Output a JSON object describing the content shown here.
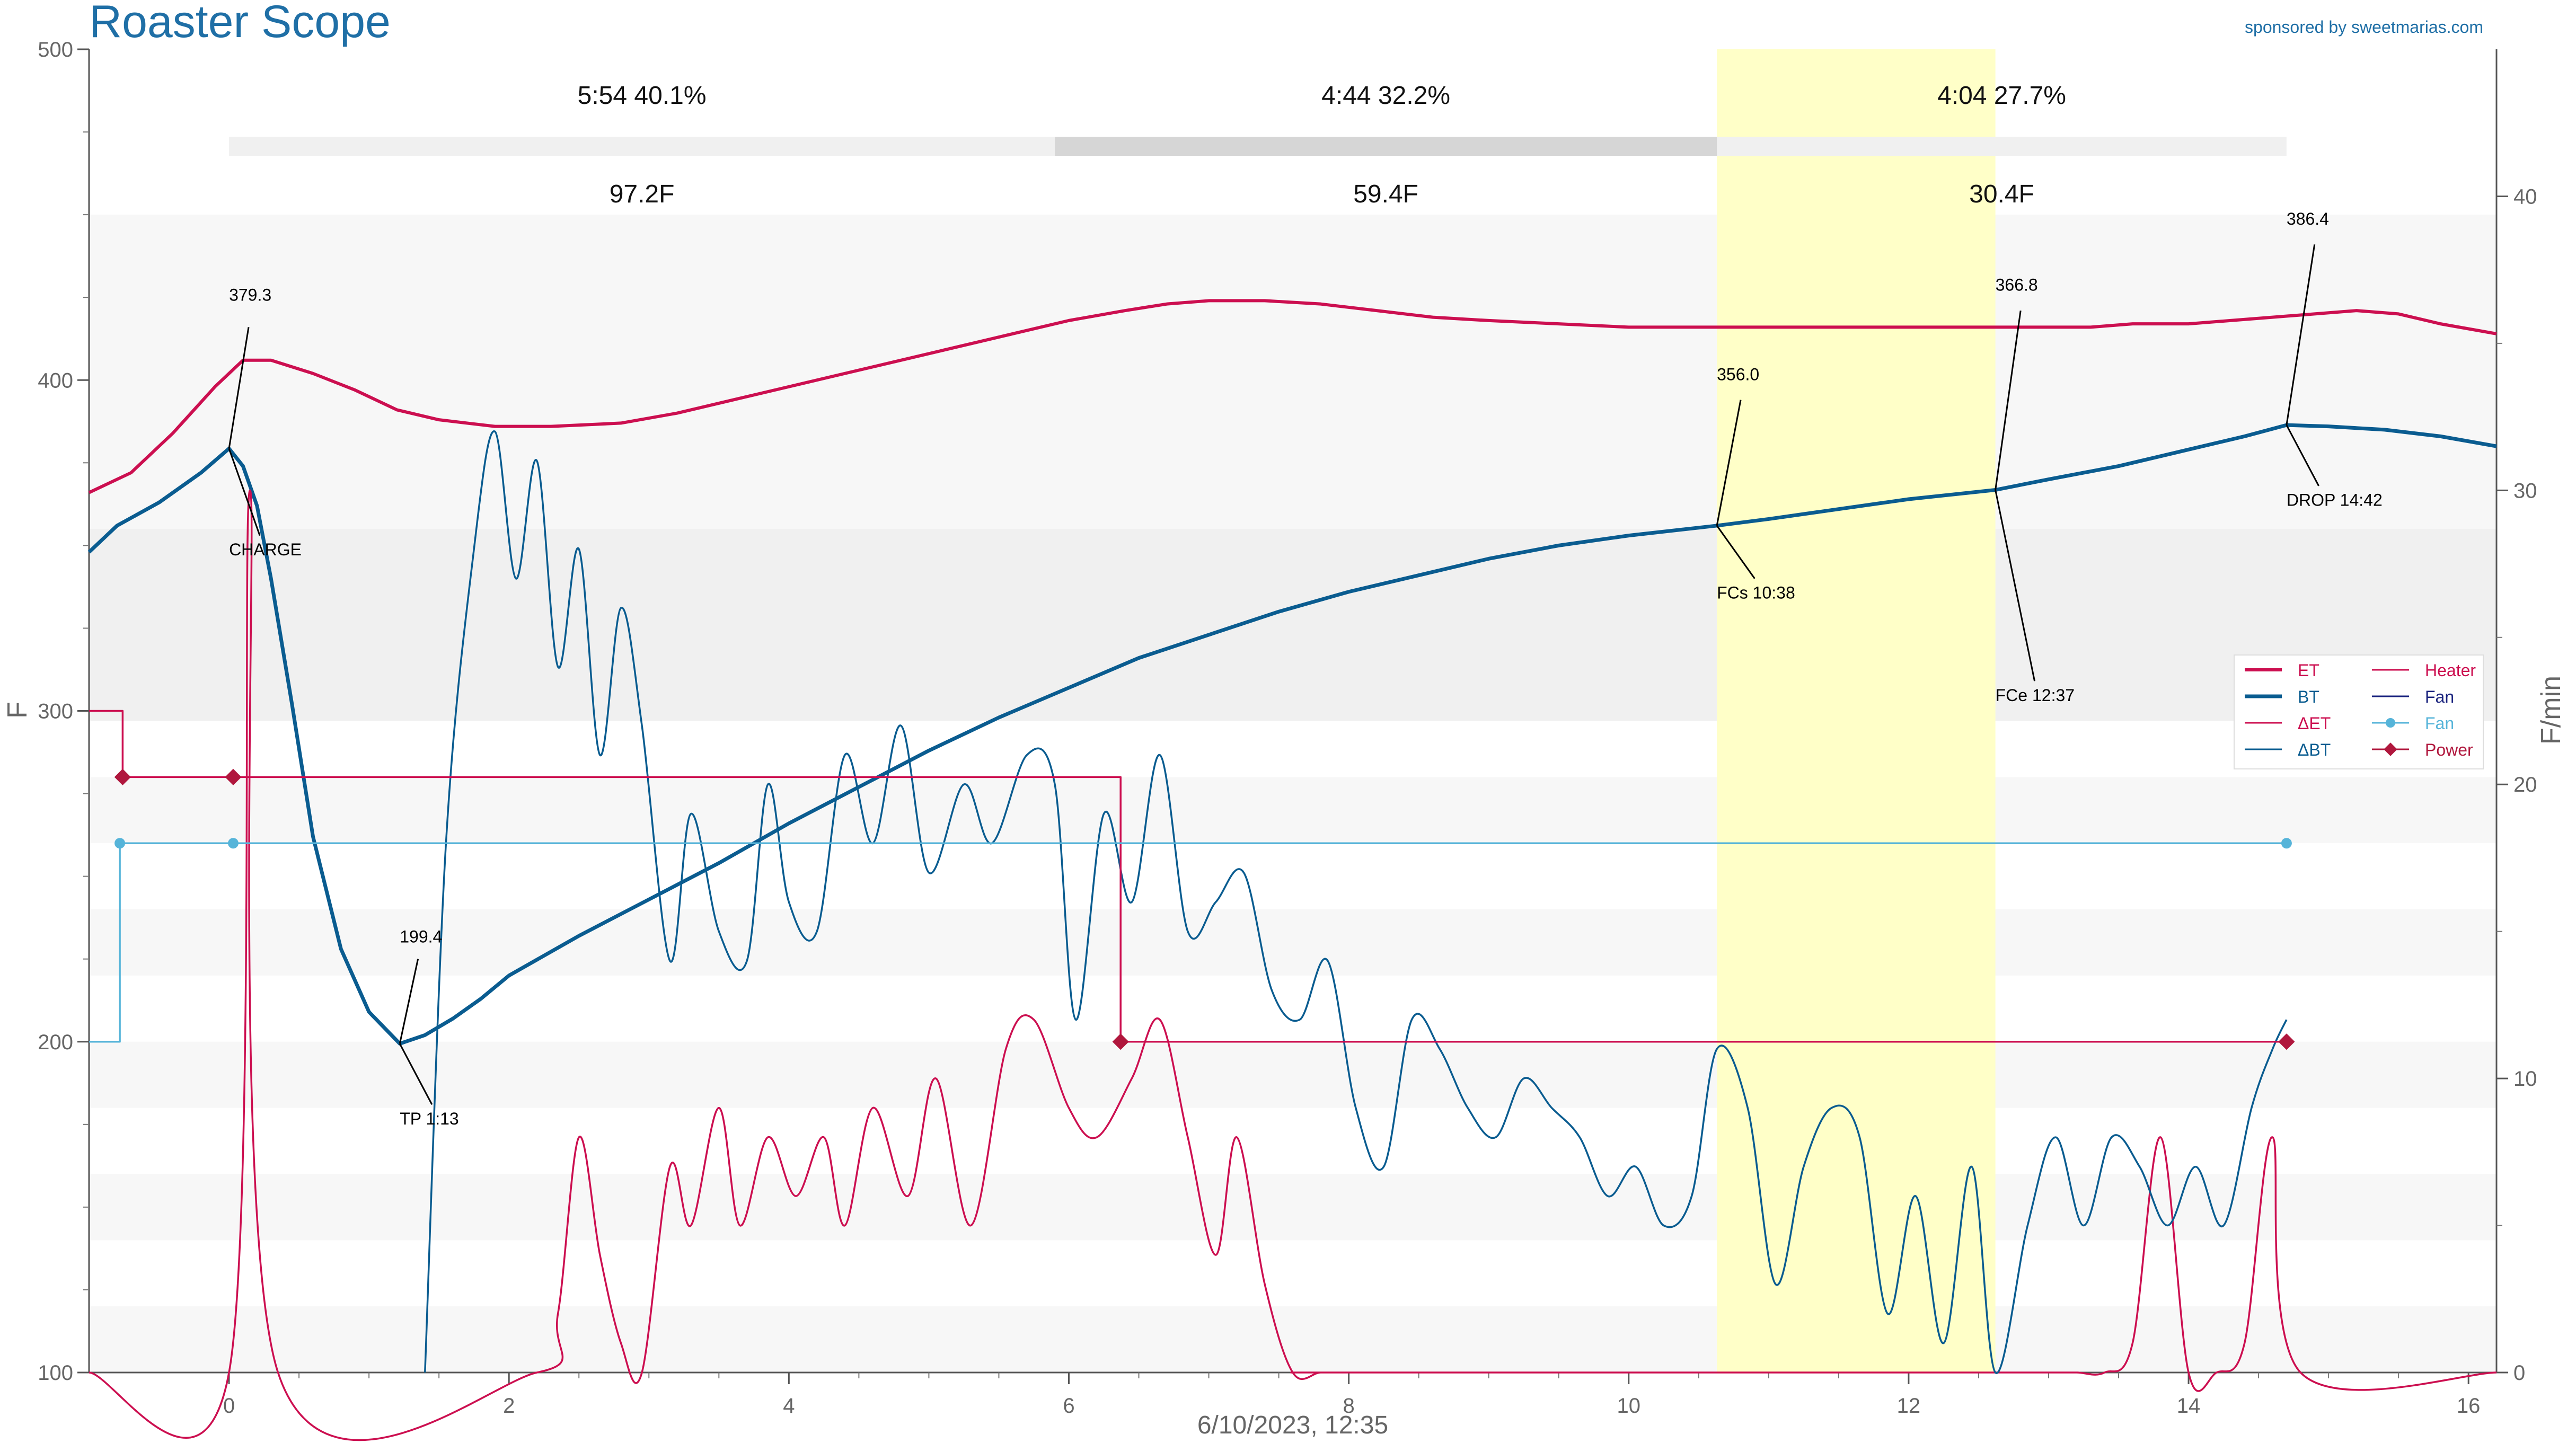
{
  "header": {
    "title": "Roaster Scope",
    "sponsor": "sponsored by sweetmarias.com"
  },
  "colors": {
    "title": "#1f6fa6",
    "et": "#cc0f50",
    "bt": "#0a5c90",
    "fan": "#56b4d9",
    "fan_legend": "#1a237e",
    "power": "#b0173d",
    "phase_highlight": "#ffffc8",
    "band_light": "#f7f7f7",
    "band_dark": "#f0f0f0"
  },
  "chart_data": {
    "type": "line",
    "xlabel": "6/10/2023, 12:35",
    "ylabel": "F",
    "y2label": "F/min",
    "xlim": [
      -1,
      16.2
    ],
    "ylim": [
      100,
      500
    ],
    "y2lim": [
      0,
      45
    ],
    "x_ticks": [
      "0",
      "2",
      "4",
      "6",
      "8",
      "10",
      "12",
      "14",
      "16"
    ],
    "y_ticks": [
      "100",
      "200",
      "300",
      "400",
      "500"
    ],
    "y2_ticks": [
      "0",
      "10",
      "20",
      "30",
      "40"
    ],
    "grid": false,
    "legend_position": "right",
    "phases": [
      {
        "time": "5:54",
        "pct": "40.1%",
        "delta": "97.2F"
      },
      {
        "time": "4:44",
        "pct": "32.2%",
        "delta": "59.4F"
      },
      {
        "time": "4:04",
        "pct": "27.7%",
        "delta": "30.4F"
      }
    ],
    "phase_bounds_min": [
      0,
      5.9,
      10.63,
      14.7
    ],
    "development_highlight": [
      10.63,
      12.62
    ],
    "events": [
      {
        "label": "CHARGE",
        "x": 0,
        "y": 379.3,
        "value": "379.3"
      },
      {
        "label": "TP 1:13",
        "x": 1.22,
        "y": 199.4,
        "value": "199.4"
      },
      {
        "label": "FCs 10:38",
        "x": 10.63,
        "y": 356.0,
        "value": "356.0"
      },
      {
        "label": "FCe 12:37",
        "x": 12.62,
        "y": 366.8,
        "value": "366.8"
      },
      {
        "label": "DROP 14:42",
        "x": 14.7,
        "y": 386.4,
        "value": "386.4"
      }
    ],
    "legend": [
      "ET",
      "BT",
      "ΔET",
      "ΔBT",
      "Heater",
      "Fan",
      "Fan",
      "Power"
    ],
    "series": [
      {
        "name": "ET",
        "axis": "left",
        "x": [
          -1,
          -0.7,
          -0.4,
          -0.1,
          0.1,
          0.3,
          0.6,
          0.9,
          1.2,
          1.5,
          1.9,
          2.3,
          2.8,
          3.2,
          3.6,
          4.0,
          4.4,
          4.8,
          5.2,
          5.6,
          6.0,
          6.4,
          6.7,
          7.0,
          7.4,
          7.8,
          8.2,
          8.6,
          9.0,
          9.5,
          10.0,
          10.5,
          11.0,
          11.5,
          12.0,
          12.5,
          13.0,
          13.3,
          13.6,
          14.0,
          14.3,
          14.6,
          14.9,
          15.2,
          15.5,
          15.8,
          16.2
        ],
        "y": [
          366,
          372,
          384,
          398,
          406,
          406,
          402,
          397,
          391,
          388,
          386,
          386,
          387,
          390,
          394,
          398,
          402,
          406,
          410,
          414,
          418,
          421,
          423,
          424,
          424,
          423,
          421,
          419,
          418,
          417,
          416,
          416,
          416,
          416,
          416,
          416,
          416,
          416,
          417,
          417,
          418,
          419,
          420,
          421,
          420,
          417,
          414
        ]
      },
      {
        "name": "BT",
        "axis": "left",
        "x": [
          -1,
          -0.8,
          -0.5,
          -0.2,
          0,
          0.1,
          0.2,
          0.3,
          0.45,
          0.6,
          0.8,
          1.0,
          1.22,
          1.4,
          1.6,
          1.8,
          2.0,
          2.5,
          3.0,
          3.5,
          4.0,
          4.5,
          5.0,
          5.5,
          6.0,
          6.5,
          7.0,
          7.5,
          8.0,
          8.5,
          9.0,
          9.5,
          10.0,
          10.63,
          11.0,
          11.5,
          12.0,
          12.62,
          13.0,
          13.5,
          14.0,
          14.4,
          14.7,
          15.0,
          15.4,
          15.8,
          16.2
        ],
        "y": [
          348,
          356,
          363,
          372,
          379.3,
          374,
          362,
          340,
          302,
          262,
          228,
          209,
          199.4,
          202,
          207,
          213,
          220,
          232,
          243,
          254,
          266,
          277,
          288,
          298,
          307,
          316,
          323,
          330,
          336,
          341,
          346,
          350,
          353,
          356,
          358,
          361,
          364,
          366.8,
          370,
          374,
          379,
          383,
          386.4,
          386,
          385,
          383,
          380
        ]
      },
      {
        "name": "ΔET",
        "axis": "right",
        "x": [
          -1,
          0,
          0.15,
          0.35,
          2.2,
          2.35,
          2.5,
          2.65,
          2.8,
          2.95,
          3.15,
          3.3,
          3.5,
          3.65,
          3.85,
          4.05,
          4.25,
          4.4,
          4.6,
          4.85,
          5.05,
          5.3,
          5.55,
          5.75,
          6.0,
          6.2,
          6.45,
          6.65,
          6.85,
          7.05,
          7.2,
          7.4,
          7.6,
          7.8,
          8.0,
          12.8,
          13.0,
          13.2,
          13.4,
          13.6,
          13.8,
          14.0,
          14.2,
          14.4,
          14.6,
          14.8,
          16.2
        ],
        "y": [
          0,
          0,
          30,
          0,
          0,
          2,
          8,
          4,
          1,
          0,
          7,
          5,
          9,
          5,
          8,
          6,
          8,
          5,
          9,
          6,
          10,
          5,
          11,
          12,
          9,
          8,
          10,
          12,
          8,
          4,
          8,
          3,
          0,
          0,
          0,
          0,
          0,
          0,
          0,
          1,
          8,
          0,
          0,
          1,
          8,
          0,
          0
        ]
      },
      {
        "name": "ΔBT",
        "axis": "right",
        "x": [
          1.4,
          1.55,
          1.75,
          1.9,
          2.05,
          2.2,
          2.35,
          2.5,
          2.65,
          2.8,
          2.95,
          3.15,
          3.3,
          3.5,
          3.7,
          3.85,
          4.0,
          4.2,
          4.4,
          4.6,
          4.8,
          5.0,
          5.25,
          5.45,
          5.7,
          5.9,
          6.05,
          6.25,
          6.45,
          6.65,
          6.85,
          7.05,
          7.25,
          7.45,
          7.65,
          7.85,
          8.05,
          8.25,
          8.45,
          8.65,
          8.85,
          9.05,
          9.25,
          9.45,
          9.65,
          9.85,
          10.05,
          10.25,
          10.45,
          10.63,
          10.85,
          11.05,
          11.25,
          11.45,
          11.65,
          11.85,
          12.05,
          12.25,
          12.45,
          12.62,
          12.85,
          13.05,
          13.25,
          13.45,
          13.65,
          13.85,
          14.05,
          14.25,
          14.45,
          14.6,
          14.7
        ],
        "y": [
          0,
          18,
          28,
          32,
          27,
          31,
          24,
          28,
          21,
          26,
          22,
          14,
          19,
          15,
          14,
          20,
          16,
          15,
          21,
          18,
          22,
          17,
          20,
          18,
          21,
          20,
          12,
          19,
          16,
          21,
          15,
          16,
          17,
          13,
          12,
          14,
          9,
          7,
          12,
          11,
          9,
          8,
          10,
          9,
          8,
          6,
          7,
          5,
          6,
          11,
          9,
          3,
          7,
          9,
          8,
          2,
          6,
          1,
          7,
          0,
          5,
          8,
          5,
          8,
          7,
          5,
          7,
          5,
          9,
          11,
          12
        ]
      },
      {
        "name": "Heater",
        "axis": "left",
        "x": [
          -1,
          -0.76,
          -0.76,
          6.37,
          6.37,
          14.7
        ],
        "y": [
          300,
          300,
          280,
          280,
          200,
          200
        ]
      },
      {
        "name": "Fan",
        "axis": "left",
        "x": [
          -1,
          -0.78,
          -0.78,
          14.7
        ],
        "y": [
          200,
          200,
          260,
          260
        ]
      },
      {
        "name": "Power",
        "axis": "left",
        "x": [
          -0.76,
          0.03,
          6.37,
          14.7
        ],
        "y": [
          280,
          280,
          200,
          200
        ]
      }
    ]
  }
}
